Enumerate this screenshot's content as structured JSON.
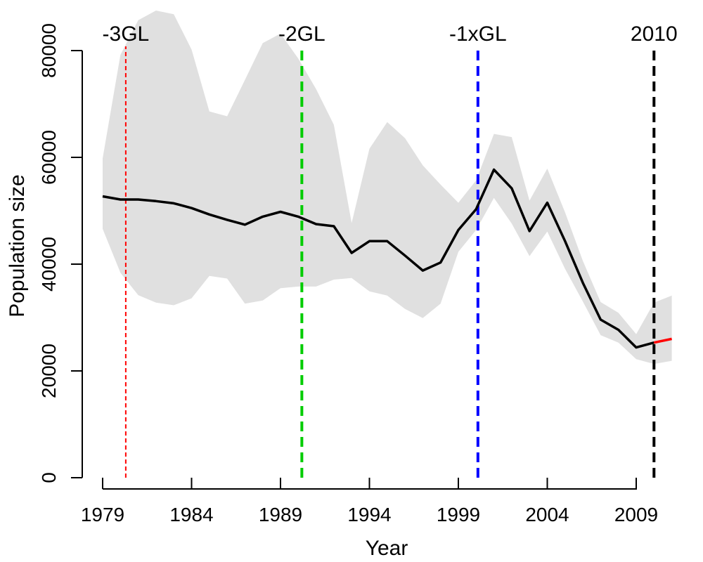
{
  "chart_data": {
    "type": "line",
    "xlabel": "Year",
    "ylabel": "Population size",
    "xlim": [
      1978.5,
      2012
    ],
    "ylim": [
      0,
      85000
    ],
    "x_ticks": [
      1979,
      1984,
      1989,
      1994,
      1999,
      2004,
      2009
    ],
    "y_ticks": [
      0,
      20000,
      40000,
      60000,
      80000
    ],
    "x_tick_labels": [
      "1979",
      "1984",
      "1989",
      "1994",
      "1999",
      "2004",
      "2009"
    ],
    "y_tick_labels": [
      "0",
      "20000",
      "40000",
      "60000",
      "80000"
    ],
    "grid": false,
    "x": [
      1979,
      1980,
      1981,
      1982,
      1983,
      1984,
      1985,
      1986,
      1987,
      1988,
      1989,
      1990,
      1991,
      1992,
      1993,
      1994,
      1995,
      1996,
      1997,
      1998,
      1999,
      2000,
      2001,
      2002,
      2003,
      2004,
      2005,
      2006,
      2007,
      2008,
      2009,
      2010
    ],
    "series": [
      {
        "color": "#000000",
        "values": [
          52700,
          52100,
          52100,
          51800,
          51400,
          50500,
          49300,
          48300,
          47400,
          48900,
          49800,
          48900,
          47500,
          47100,
          42100,
          44300,
          44300,
          41600,
          38800,
          40300,
          46400,
          50300,
          57700,
          54200,
          46200,
          51500,
          44300,
          36500,
          29600,
          27700,
          24400,
          25300
        ]
      },
      {
        "color": "#ff0000",
        "x": [
          2010,
          2011
        ],
        "values": [
          25300,
          26000
        ]
      }
    ],
    "confidence_band": {
      "color": "#e0e0e0",
      "x": [
        1979,
        1980,
        1981,
        1982,
        1983,
        1984,
        1985,
        1986,
        1987,
        1988,
        1989,
        1990,
        1991,
        1992,
        1993,
        1994,
        1995,
        1996,
        1997,
        1998,
        1999,
        2000,
        2001,
        2002,
        2003,
        2004,
        2005,
        2006,
        2007,
        2008,
        2009,
        2010,
        2011
      ],
      "upper": [
        59800,
        79200,
        85700,
        87500,
        86800,
        80200,
        68600,
        67700,
        74500,
        81400,
        83200,
        78500,
        72800,
        66100,
        47700,
        61600,
        66600,
        63600,
        58500,
        54900,
        51500,
        55700,
        64400,
        63800,
        51900,
        57900,
        49700,
        40600,
        32900,
        30900,
        26900,
        32800,
        34100
      ],
      "lower": [
        46600,
        38400,
        34200,
        32800,
        32300,
        33600,
        37800,
        37300,
        32600,
        33200,
        35500,
        35800,
        35800,
        37100,
        37400,
        34900,
        34100,
        31600,
        29900,
        32600,
        42300,
        46400,
        52400,
        47600,
        41500,
        46100,
        39100,
        33000,
        26700,
        25300,
        22200,
        21300,
        21900
      ]
    },
    "reference_lines": [
      {
        "label": "-3GL",
        "x": 1980.3,
        "color": "#ff0000",
        "style": "dotted"
      },
      {
        "label": "-2GL",
        "x": 1990.2,
        "color": "#00cc00",
        "style": "dashed"
      },
      {
        "label": "-1xGL",
        "x": 2000.1,
        "color": "#0000ff",
        "style": "dashed"
      },
      {
        "label": "2010",
        "x": 2010,
        "color": "#000000",
        "style": "dashed"
      }
    ]
  }
}
